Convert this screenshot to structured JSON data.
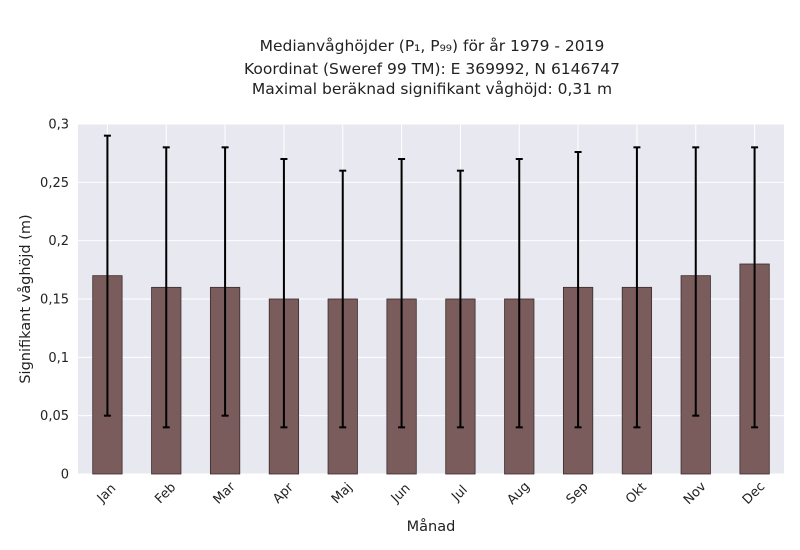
{
  "chart_data": {
    "type": "bar",
    "title_lines": [
      "Medianvåghöjder (P₁, P₉₉) för år 1979 - 2019",
      "Koordinat (Sweref 99 TM): E 369992, N 6146747",
      "Maximal beräknad signifikant våghöjd: 0,31 m"
    ],
    "xlabel": "Månad",
    "ylabel": "Signifikant våghöjd (m)",
    "categories": [
      "Jan",
      "Feb",
      "Mar",
      "Apr",
      "Maj",
      "Jun",
      "Jul",
      "Aug",
      "Sep",
      "Okt",
      "Nov",
      "Dec"
    ],
    "values": [
      0.17,
      0.16,
      0.16,
      0.15,
      0.15,
      0.15,
      0.15,
      0.15,
      0.16,
      0.16,
      0.17,
      0.18
    ],
    "error_low": [
      0.05,
      0.04,
      0.05,
      0.04,
      0.04,
      0.04,
      0.04,
      0.04,
      0.04,
      0.04,
      0.05,
      0.04
    ],
    "error_high": [
      0.29,
      0.28,
      0.28,
      0.27,
      0.26,
      0.27,
      0.26,
      0.27,
      0.276,
      0.28,
      0.28,
      0.28
    ],
    "ylim": [
      0,
      0.3
    ],
    "yticks": [
      0,
      0.05,
      0.1,
      0.15,
      0.2,
      0.25,
      0.3
    ],
    "ytick_labels": [
      "0",
      "0,05",
      "0,1",
      "0,15",
      "0,2",
      "0,25",
      "0,3"
    ],
    "grid": true,
    "colors": {
      "bar": "#7b5c5c",
      "bar_edge": "#3a2c2c",
      "error_bar": "#000000",
      "plot_background": "#e8e8f1",
      "grid": "#ffffff"
    }
  }
}
